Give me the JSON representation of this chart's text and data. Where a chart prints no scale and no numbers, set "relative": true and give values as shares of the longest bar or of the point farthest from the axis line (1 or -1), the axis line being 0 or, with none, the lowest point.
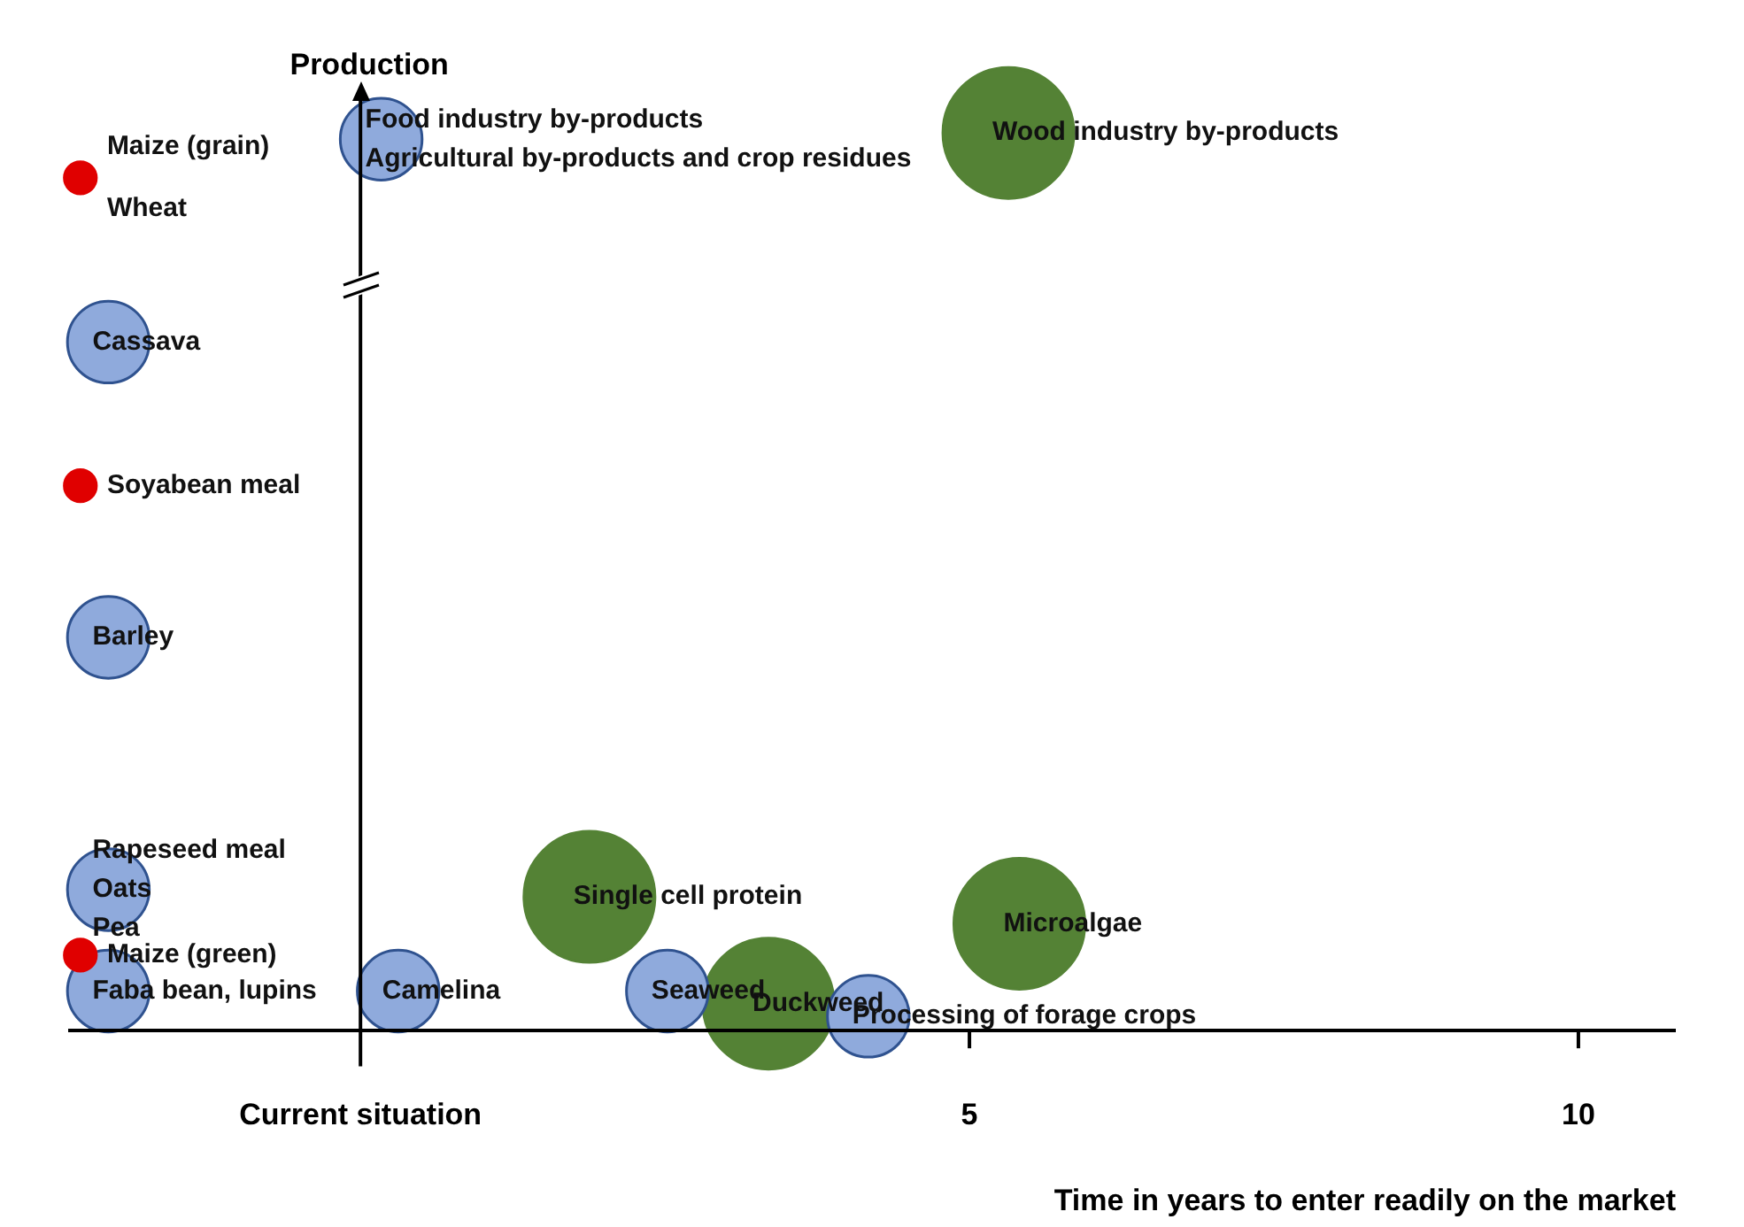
{
  "chart_data": {
    "type": "bubble",
    "relative": true,
    "xlabel": "Time in years to enter readily on the market",
    "ylabel": "Production",
    "xlim": [
      -2.4,
      10.8
    ],
    "xticks": [
      {
        "value": 0,
        "label": "Current situation"
      },
      5,
      10
    ],
    "series": [
      {
        "color": "#e00000",
        "x": [
          -2.3,
          -2.3,
          -2.3
        ],
        "values": [
          0.95,
          0.607,
          0.084
        ],
        "sizes": [
          0.06,
          0.06,
          0.06
        ]
      },
      {
        "color": "#8faadc",
        "x": [
          0.17,
          -2.07,
          -2.07,
          -2.07,
          -2.07,
          0.31,
          2.52,
          4.17
        ],
        "values": [
          0.993,
          0.767,
          0.438,
          0.157,
          0.044,
          0.044,
          0.044,
          0.016
        ],
        "sizes": [
          0.39,
          0.39,
          0.39,
          0.39,
          0.39,
          0.39,
          0.39,
          0.39
        ]
      },
      {
        "color": "#548235",
        "x": [
          5.32,
          1.88,
          5.41,
          3.35
        ],
        "values": [
          1,
          0.149,
          0.119,
          0.03
        ],
        "sizes": [
          1,
          1,
          1,
          1
        ]
      }
    ],
    "annotations": [
      {
        "text": "Maize (grain)",
        "x": -2.3,
        "y": 0.95
      },
      {
        "text": "Wheat",
        "x": -2.3,
        "y": 0.95
      },
      {
        "text": "Cassava",
        "x": -2.07,
        "y": 0.767
      },
      {
        "text": "Soyabean meal",
        "x": -2.3,
        "y": 0.607
      },
      {
        "text": "Barley",
        "x": -2.07,
        "y": 0.438
      },
      {
        "text": "Rapeseed meal",
        "x": -2.07,
        "y": 0.157
      },
      {
        "text": "Oats",
        "x": -2.07,
        "y": 0.157
      },
      {
        "text": "Pea",
        "x": -2.07,
        "y": 0.157
      },
      {
        "text": "Maize (green)",
        "x": -2.3,
        "y": 0.084
      },
      {
        "text": "Faba bean, lupins",
        "x": -2.07,
        "y": 0.044
      },
      {
        "text": "Food industry by-products",
        "x": 0.17,
        "y": 0.993
      },
      {
        "text": "Agricultural by-products and crop residues",
        "x": 0.17,
        "y": 0.993
      },
      {
        "text": "Wood industry by-products",
        "x": 5.32,
        "y": 1
      },
      {
        "text": "Single cell protein",
        "x": 1.88,
        "y": 0.149
      },
      {
        "text": "Microalgae",
        "x": 5.41,
        "y": 0.119
      },
      {
        "text": "Duckweed",
        "x": 3.35,
        "y": 0.03
      },
      {
        "text": "Camelina",
        "x": 0.31,
        "y": 0.044
      },
      {
        "text": "Seaweed",
        "x": 2.52,
        "y": 0.044
      },
      {
        "text": "Processing of forage crops",
        "x": 4.17,
        "y": 0.016
      }
    ]
  }
}
